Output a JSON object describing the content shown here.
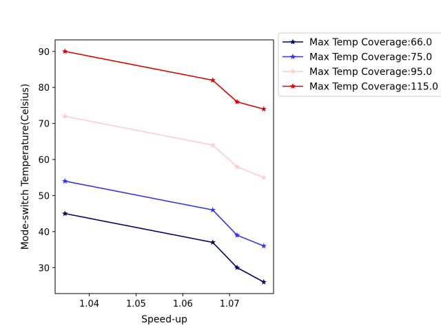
{
  "chart_data": {
    "type": "line",
    "xlabel": "Speed-up",
    "ylabel": "Mode-switch Temperature(Celsius)",
    "xlim": [
      1.0327,
      1.0794
    ],
    "ylim": [
      22.8,
      93.2
    ],
    "xticks": [
      "1.04",
      "1.05",
      "1.06",
      "1.07"
    ],
    "xtick_values": [
      1.04,
      1.05,
      1.06,
      1.07
    ],
    "yticks": [
      "30",
      "40",
      "50",
      "60",
      "70",
      "80",
      "90"
    ],
    "ytick_values": [
      30,
      40,
      50,
      60,
      70,
      80,
      90
    ],
    "grid": false,
    "legend_placement": "outside top-right",
    "x": [
      1.0348,
      1.0664,
      1.0716,
      1.0773
    ],
    "series": [
      {
        "name": "Max Temp Coverage:66.0",
        "color": "#000066",
        "marker": "star",
        "values": [
          45,
          37,
          30,
          26
        ]
      },
      {
        "name": "Max Temp Coverage:75.0",
        "color": "#3333ee",
        "marker": "star",
        "values": [
          54,
          46,
          39,
          36
        ]
      },
      {
        "name": "Max Temp Coverage:95.0",
        "color": "#ffcccc",
        "marker": "star",
        "values": [
          72,
          64,
          58,
          55
        ]
      },
      {
        "name": "Max Temp Coverage:115.0",
        "color": "#dd0000",
        "marker": "star",
        "values": [
          90,
          82,
          76,
          74
        ]
      }
    ]
  }
}
